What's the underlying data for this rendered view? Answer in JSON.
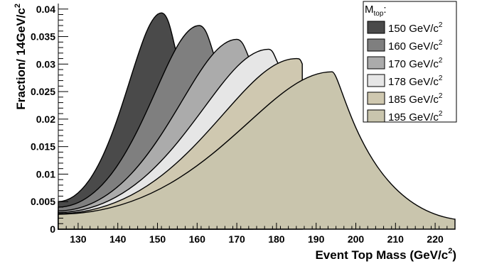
{
  "chart_data": {
    "type": "area",
    "title": "",
    "xlabel": "Event Top Mass (GeV/c",
    "xlabel_sup": "2",
    "xlabel_tail": ")",
    "ylabel": "Fraction/ 14GeV/c",
    "ylabel_sup": "2",
    "xlim": [
      125,
      225
    ],
    "ylim": [
      0,
      0.041
    ],
    "x_ticks": [
      130,
      140,
      150,
      160,
      170,
      180,
      190,
      200,
      210,
      220
    ],
    "y_ticks": [
      {
        "v": 0,
        "label": "0"
      },
      {
        "v": 0.005,
        "label": "0.005"
      },
      {
        "v": 0.01,
        "label": "0.01"
      },
      {
        "v": 0.015,
        "label": "0.015"
      },
      {
        "v": 0.02,
        "label": "0.02"
      },
      {
        "v": 0.025,
        "label": "0.025"
      },
      {
        "v": 0.03,
        "label": "0.03"
      },
      {
        "v": 0.035,
        "label": "0.035"
      },
      {
        "v": 0.04,
        "label": "0.04"
      }
    ],
    "grid": false,
    "legend_position": "top-right",
    "legend_title": "M",
    "legend_title_sub": "top",
    "legend_title_tail": ":",
    "series": [
      {
        "name": "150 GeV/c",
        "name_sup": "2",
        "color": "#4a4a4a",
        "x0": 125,
        "y0": 0.005,
        "peak_x": 151,
        "peak_y": 0.0393,
        "x1": 156,
        "y1": 0.03
      },
      {
        "name": "160 GeV/c",
        "name_sup": "2",
        "color": "#7f7f7f",
        "x0": 125,
        "y0": 0.004,
        "peak_x": 160.5,
        "peak_y": 0.037,
        "x1": 165.5,
        "y1": 0.03
      },
      {
        "name": "170 GeV/c",
        "name_sup": "2",
        "color": "#ababab",
        "x0": 125,
        "y0": 0.0033,
        "peak_x": 170,
        "peak_y": 0.0345,
        "x1": 174,
        "y1": 0.03
      },
      {
        "name": "178 GeV/c",
        "name_sup": "2",
        "color": "#e6e6e6",
        "x0": 125,
        "y0": 0.003,
        "peak_x": 178,
        "peak_y": 0.0327,
        "x1": 180.5,
        "y1": 0.03
      },
      {
        "name": "185 GeV/c",
        "name_sup": "2",
        "color": "#cfc8b0",
        "x0": 125,
        "y0": 0.0028,
        "peak_x": 185,
        "peak_y": 0.031,
        "x1": 186.5,
        "y1": 0.03
      },
      {
        "name": "195 GeV/c",
        "name_sup": "2",
        "color": "#c9c5ad",
        "x0": 125,
        "y0": 0.0027,
        "peak_x": 194,
        "peak_y": 0.0286,
        "x1": 225,
        "y1": 0.0018
      }
    ]
  }
}
